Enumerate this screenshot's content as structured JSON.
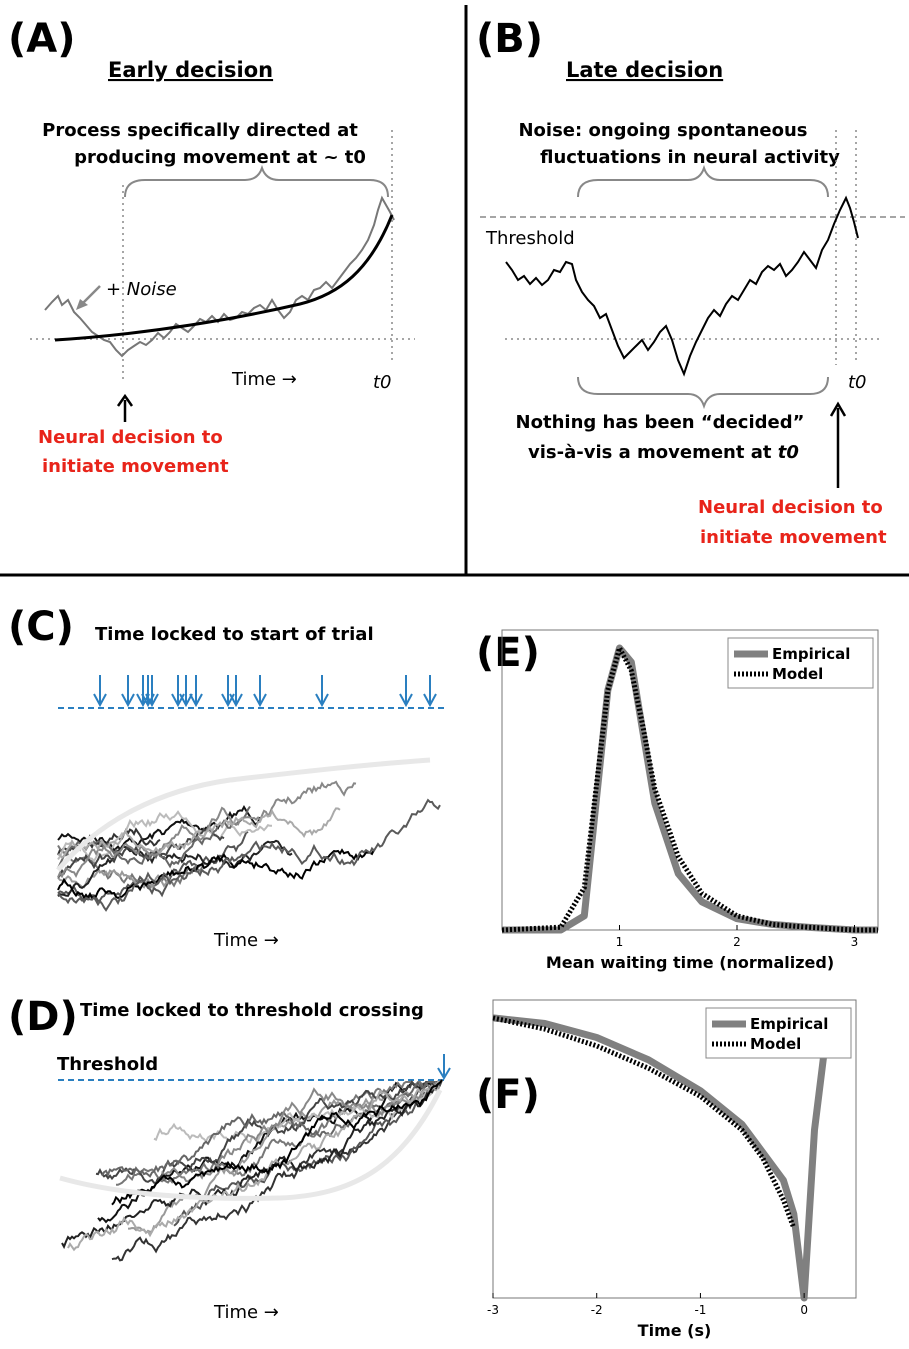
{
  "panels": {
    "A": {
      "letter": "(A)",
      "heading": "Early decision",
      "desc_line1": "Process specifically directed at",
      "desc_line2": "producing movement at ~ t0",
      "noise_label": "+ Noise",
      "time_label": "Time →",
      "t0_label": "t0",
      "red_line1": "Neural decision to",
      "red_line2": "initiate movement"
    },
    "B": {
      "letter": "(B)",
      "heading": "Late decision",
      "desc_line1": "Noise: ongoing spontaneous",
      "desc_line2": "fluctuations in neural activity",
      "threshold_label": "Threshold",
      "t0_label": "t0",
      "nothing_line1": "Nothing has been “decided”",
      "nothing_line2": "vis-à-vis a movement at ",
      "nothing_t0": "t0",
      "red_line1": "Neural decision to",
      "red_line2": "initiate movement"
    },
    "C": {
      "letter": "(C)",
      "title": "Time locked to start of trial",
      "time_label": "Time →"
    },
    "D": {
      "letter": "(D)",
      "title": "Time locked to threshold crossing",
      "threshold_label": "Threshold",
      "time_label": "Time →"
    },
    "E": {
      "letter": "(E)"
    },
    "F": {
      "letter": "(F)"
    }
  },
  "chart_data": [
    {
      "type": "line",
      "panel": "E",
      "xlabel": "Mean waiting time (normalized)",
      "ylabel": "",
      "xlim": [
        0,
        3.2
      ],
      "xticks": [
        "1",
        "2",
        "3"
      ],
      "legend": "top-right",
      "series": [
        {
          "name": "Empirical",
          "color": "#808080",
          "style": "solid"
        },
        {
          "name": "Model",
          "color": "#000000",
          "style": "dashed"
        }
      ],
      "x": [
        0.0,
        0.5,
        0.7,
        0.8,
        0.9,
        1.0,
        1.1,
        1.2,
        1.3,
        1.5,
        1.7,
        2.0,
        2.3,
        2.6,
        3.0,
        3.2
      ],
      "empirical": [
        0.0,
        0.0,
        0.05,
        0.45,
        0.85,
        1.0,
        0.95,
        0.7,
        0.45,
        0.2,
        0.1,
        0.04,
        0.02,
        0.01,
        0.0,
        0.0
      ],
      "model": [
        0.0,
        0.01,
        0.15,
        0.5,
        0.85,
        1.0,
        0.92,
        0.72,
        0.5,
        0.26,
        0.13,
        0.05,
        0.02,
        0.01,
        0.0,
        0.0
      ]
    },
    {
      "type": "line",
      "panel": "F",
      "xlabel": "Time (s)",
      "ylabel": "",
      "xlim": [
        -3,
        0.5
      ],
      "xticks": [
        "-3",
        "-2",
        "-1",
        "0"
      ],
      "legend": "top-right",
      "series": [
        {
          "name": "Empirical",
          "color": "#808080",
          "style": "solid"
        },
        {
          "name": "Model",
          "color": "#000000",
          "style": "dashed"
        }
      ],
      "x": [
        -3.0,
        -2.5,
        -2.0,
        -1.5,
        -1.0,
        -0.6,
        -0.4,
        -0.2,
        -0.1,
        0.0,
        0.1,
        0.2,
        0.3
      ],
      "empirical": [
        1.0,
        0.98,
        0.93,
        0.85,
        0.74,
        0.62,
        0.52,
        0.42,
        0.3,
        0.0,
        0.6,
        0.9,
        1.0
      ],
      "model": [
        1.0,
        0.96,
        0.9,
        0.82,
        0.72,
        0.6,
        0.5,
        0.35,
        0.25
      ]
    }
  ]
}
